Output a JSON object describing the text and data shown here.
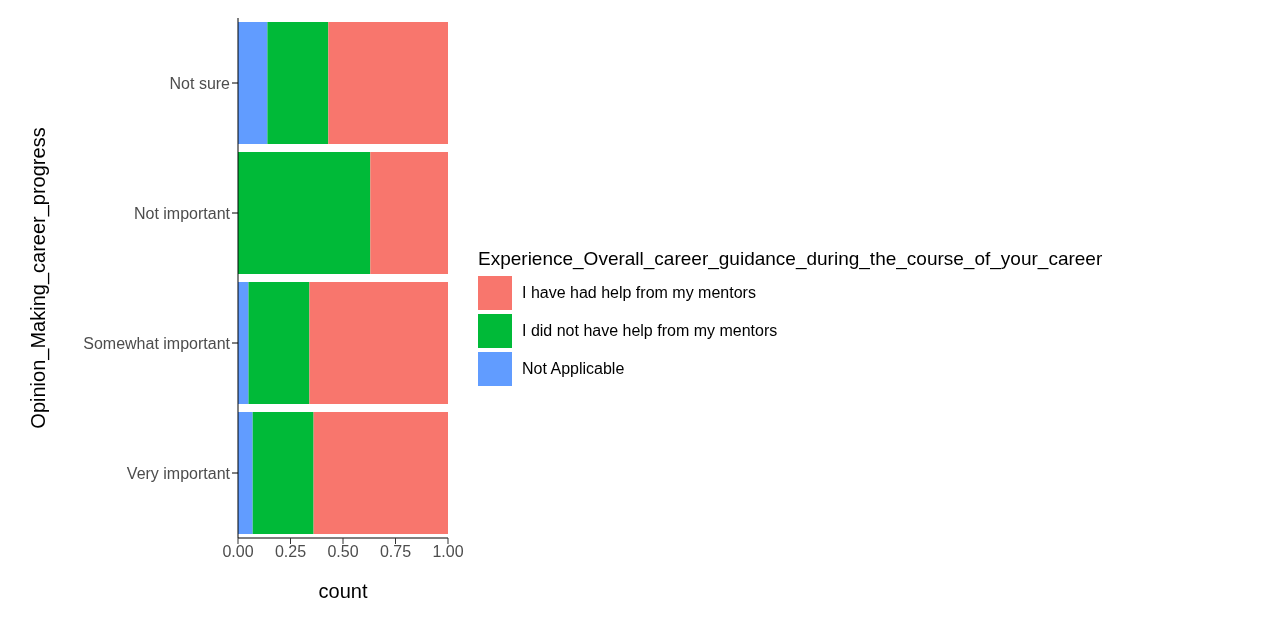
{
  "chart_data": {
    "type": "bar",
    "orientation": "horizontal",
    "stacked": true,
    "xlabel": "count",
    "ylabel": "Opinion_Making_career_progress",
    "legend_title": "Experience_Overall_career_guidance_during_the_course_of_your_career",
    "categories": [
      "Not sure",
      "Not important",
      "Somewhat important",
      "Very important"
    ],
    "series": [
      {
        "name": "Not Applicable",
        "color": "#619cff",
        "values": [
          0.14,
          0,
          0.05,
          0.07
        ]
      },
      {
        "name": "I did not have help from my mentors",
        "color": "#00ba38",
        "values": [
          0.29,
          0.63,
          0.29,
          0.29
        ]
      },
      {
        "name": "I have had help from my mentors",
        "color": "#f8766d",
        "values": [
          0.57,
          0.37,
          0.66,
          0.64
        ]
      }
    ],
    "xlim": [
      0,
      1
    ],
    "xticks": [
      {
        "value": 0,
        "label": "0.00"
      },
      {
        "value": 0.25,
        "label": "0.25"
      },
      {
        "value": 0.5,
        "label": "0.50"
      },
      {
        "value": 0.75,
        "label": "0.75"
      },
      {
        "value": 1,
        "label": "1.00"
      }
    ],
    "grid": false,
    "legend": "right"
  }
}
